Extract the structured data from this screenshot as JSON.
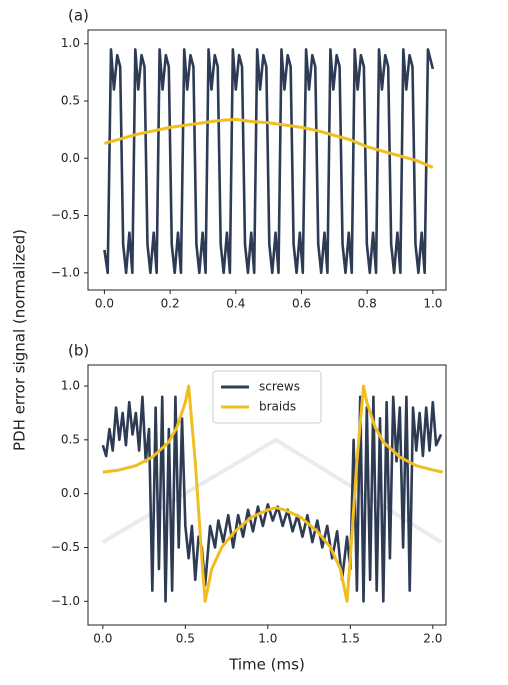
{
  "ylabel": "PDH error signal (normalized)",
  "chart_data": [
    {
      "type": "line",
      "label": "(a)",
      "xlim": [
        -0.05,
        1.04
      ],
      "ylim": [
        -1.15,
        1.12
      ],
      "xticks": [
        {
          "value": 0,
          "label": "0.0"
        },
        {
          "value": 0.2,
          "label": "0.2"
        },
        {
          "value": 0.4,
          "label": "0.4"
        },
        {
          "value": 0.6,
          "label": "0.6"
        },
        {
          "value": 0.8,
          "label": "0.8"
        },
        {
          "value": 1,
          "label": "1.0"
        }
      ],
      "yticks": [
        {
          "value": -1,
          "label": "−1.0"
        },
        {
          "value": -0.5,
          "label": "−0.5"
        },
        {
          "value": 0,
          "label": "0.0"
        },
        {
          "value": 0.5,
          "label": "0.5"
        },
        {
          "value": 1,
          "label": "1.0"
        }
      ],
      "series": [
        {
          "color": "#2e3b55",
          "x": [
            0.0,
            0.01,
            0.02,
            0.029,
            0.039,
            0.048,
            0.057,
            0.066,
            0.076,
            0.085,
            0.094,
            0.103,
            0.113,
            0.122,
            0.131,
            0.14,
            0.15,
            0.159,
            0.168,
            0.177,
            0.187,
            0.196,
            0.205,
            0.214,
            0.224,
            0.233,
            0.243,
            0.252,
            0.262,
            0.271,
            0.28,
            0.289,
            0.299,
            0.308,
            0.317,
            0.326,
            0.336,
            0.345,
            0.354,
            0.363,
            0.373,
            0.382,
            0.391,
            0.4,
            0.41,
            0.419,
            0.428,
            0.437,
            0.447,
            0.456,
            0.465,
            0.474,
            0.484,
            0.493,
            0.502,
            0.511,
            0.521,
            0.53,
            0.539,
            0.548,
            0.558,
            0.567,
            0.576,
            0.585,
            0.595,
            0.604,
            0.614,
            0.623,
            0.633,
            0.642,
            0.651,
            0.66,
            0.67,
            0.679,
            0.688,
            0.697,
            0.707,
            0.716,
            0.725,
            0.734,
            0.744,
            0.753,
            0.762,
            0.771,
            0.781,
            0.79,
            0.799,
            0.808,
            0.818,
            0.827,
            0.836,
            0.845,
            0.855,
            0.864,
            0.873,
            0.882,
            0.892,
            0.901,
            0.91,
            0.919,
            0.929,
            0.938,
            0.947,
            0.956,
            0.966,
            0.975,
            0.985,
            1.0
          ],
          "values": [
            -0.8,
            -1.0,
            0.95,
            0.6,
            0.9,
            0.8,
            -0.75,
            -1.0,
            -0.65,
            -1.0,
            0.95,
            0.6,
            0.9,
            0.8,
            -0.75,
            -1.0,
            -0.65,
            -1.0,
            0.95,
            0.6,
            0.9,
            0.8,
            -0.75,
            -1.0,
            -0.65,
            -1.0,
            0.95,
            0.6,
            0.9,
            0.8,
            -0.75,
            -1.0,
            -0.65,
            -1.0,
            0.95,
            0.6,
            0.9,
            0.8,
            -0.75,
            -1.0,
            -0.65,
            -1.0,
            0.95,
            0.6,
            0.9,
            0.8,
            -0.75,
            -1.0,
            -0.65,
            -1.0,
            0.95,
            0.6,
            0.9,
            0.8,
            -0.75,
            -1.0,
            -0.65,
            -1.0,
            0.95,
            0.6,
            0.9,
            0.8,
            -0.75,
            -1.0,
            -0.65,
            -1.0,
            0.95,
            0.6,
            0.9,
            0.8,
            -0.75,
            -1.0,
            -0.65,
            -1.0,
            0.95,
            0.6,
            0.9,
            0.8,
            -0.75,
            -1.0,
            -0.65,
            -1.0,
            0.95,
            0.6,
            0.9,
            0.8,
            -0.75,
            -1.0,
            -0.65,
            -1.0,
            0.95,
            0.6,
            0.9,
            0.8,
            -0.75,
            -1.0,
            -0.65,
            -1.0,
            0.95,
            0.6,
            0.9,
            0.8,
            -0.75,
            -1.0,
            -0.65,
            -1.0,
            0.95,
            0.78
          ]
        },
        {
          "color": "#f0be1e",
          "x": [
            0,
            0.05,
            0.1,
            0.15,
            0.2,
            0.25,
            0.3,
            0.35,
            0.4,
            0.45,
            0.5,
            0.55,
            0.6,
            0.65,
            0.7,
            0.75,
            0.8,
            0.85,
            0.9,
            0.95,
            1.0
          ],
          "values": [
            0.13,
            0.17,
            0.21,
            0.24,
            0.27,
            0.29,
            0.31,
            0.33,
            0.34,
            0.32,
            0.31,
            0.29,
            0.27,
            0.24,
            0.2,
            0.16,
            0.1,
            0.06,
            0.02,
            -0.02,
            -0.08
          ]
        }
      ]
    },
    {
      "type": "line",
      "label": "(b)",
      "xlabel": "Time (ms)",
      "legend": "upper center",
      "xlim": [
        -0.09,
        2.08
      ],
      "ylim": [
        -1.22,
        1.195
      ],
      "xticks": [
        {
          "value": 0,
          "label": "0.0"
        },
        {
          "value": 0.5,
          "label": "0.5"
        },
        {
          "value": 1,
          "label": "1.0"
        },
        {
          "value": 1.5,
          "label": "1.5"
        },
        {
          "value": 2,
          "label": "2.0"
        }
      ],
      "yticks": [
        {
          "value": -1,
          "label": "−1.0"
        },
        {
          "value": -0.5,
          "label": "−0.5"
        },
        {
          "value": 0,
          "label": "0.0"
        },
        {
          "value": 0.5,
          "label": "0.5"
        },
        {
          "value": 1,
          "label": "1.0"
        }
      ],
      "background_line": {
        "color": "#e9ecea",
        "x": [
          0,
          1.05,
          2.05
        ],
        "values": [
          -0.45,
          0.5,
          -0.45
        ]
      },
      "series": [
        {
          "name": "screws",
          "color": "#2e3b55",
          "x": [
            0.0,
            0.02,
            0.04,
            0.06,
            0.08,
            0.1,
            0.12,
            0.14,
            0.16,
            0.18,
            0.2,
            0.22,
            0.24,
            0.26,
            0.28,
            0.3,
            0.32,
            0.34,
            0.36,
            0.38,
            0.4,
            0.42,
            0.44,
            0.46,
            0.48,
            0.5,
            0.52,
            0.54,
            0.56,
            0.58,
            0.6,
            0.62,
            0.65,
            0.68,
            0.7,
            0.73,
            0.76,
            0.79,
            0.82,
            0.85,
            0.88,
            0.91,
            0.94,
            0.97,
            1.0,
            1.03,
            1.06,
            1.09,
            1.12,
            1.15,
            1.18,
            1.21,
            1.24,
            1.27,
            1.3,
            1.33,
            1.36,
            1.39,
            1.42,
            1.45,
            1.48,
            1.5,
            1.52,
            1.54,
            1.56,
            1.58,
            1.6,
            1.62,
            1.64,
            1.66,
            1.68,
            1.7,
            1.72,
            1.74,
            1.76,
            1.78,
            1.8,
            1.82,
            1.84,
            1.86,
            1.88,
            1.9,
            1.92,
            1.94,
            1.96,
            1.98,
            2.0,
            2.02,
            2.05
          ],
          "values": [
            0.45,
            0.35,
            0.6,
            0.4,
            0.8,
            0.5,
            0.75,
            0.45,
            0.85,
            0.55,
            0.75,
            0.4,
            0.9,
            0.3,
            0.6,
            -0.9,
            0.8,
            -0.7,
            0.9,
            -1.0,
            0.6,
            -0.9,
            0.9,
            -0.5,
            0.7,
            -0.3,
            -0.6,
            -0.3,
            -0.8,
            -0.4,
            -0.5,
            -0.85,
            -0.3,
            -0.5,
            -0.25,
            -0.45,
            -0.2,
            -0.5,
            -0.2,
            -0.4,
            -0.15,
            -0.35,
            -0.12,
            -0.3,
            -0.1,
            -0.25,
            -0.12,
            -0.3,
            -0.15,
            -0.35,
            -0.2,
            -0.4,
            -0.2,
            -0.45,
            -0.25,
            -0.5,
            -0.3,
            -0.6,
            -0.35,
            -0.8,
            -0.4,
            -0.7,
            0.5,
            -0.9,
            0.9,
            -1.0,
            0.8,
            -0.8,
            0.9,
            -0.9,
            0.7,
            -1.0,
            0.85,
            -0.6,
            0.9,
            0.3,
            0.8,
            -0.5,
            0.9,
            -0.9,
            0.8,
            0.4,
            0.75,
            0.35,
            0.8,
            0.4,
            0.85,
            0.45,
            0.55
          ]
        },
        {
          "name": "braids",
          "color": "#f0be1e",
          "x": [
            0,
            0.1,
            0.2,
            0.3,
            0.4,
            0.45,
            0.5,
            0.52,
            0.56,
            0.6,
            0.62,
            0.66,
            0.72,
            0.8,
            0.9,
            1.0,
            1.05,
            1.1,
            1.2,
            1.3,
            1.38,
            1.44,
            1.48,
            1.5,
            1.54,
            1.58,
            1.6,
            1.65,
            1.7,
            1.8,
            1.9,
            2.0,
            2.06
          ],
          "values": [
            0.2,
            0.22,
            0.26,
            0.34,
            0.48,
            0.62,
            0.85,
            1.0,
            0.3,
            -0.6,
            -1.0,
            -0.7,
            -0.5,
            -0.35,
            -0.22,
            -0.15,
            -0.13,
            -0.15,
            -0.22,
            -0.35,
            -0.5,
            -0.7,
            -1.0,
            -0.6,
            0.3,
            1.0,
            0.85,
            0.62,
            0.48,
            0.34,
            0.26,
            0.22,
            0.2
          ]
        }
      ]
    }
  ]
}
